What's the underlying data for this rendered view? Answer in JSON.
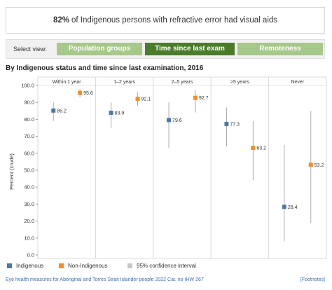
{
  "headline": {
    "value": "82%",
    "text": "of Indigenous persons with refractive error had visual aids"
  },
  "view_selector": {
    "label": "Select view:",
    "options": [
      {
        "label": "Population groups",
        "selected": false
      },
      {
        "label": "Time since last exam",
        "selected": true
      },
      {
        "label": "Remoteness",
        "selected": false
      }
    ]
  },
  "colors": {
    "indigenous": "#4e79a7",
    "non_indigenous": "#f28e2b",
    "ci": "#aaaaaa",
    "selected_button": "#4a7c2a",
    "unselected_button": "#a6c88a"
  },
  "chart_data": {
    "type": "scatter",
    "title": "By Indigenous status and time since last examination, 2016",
    "ylabel": "Percent (crude)",
    "ylim": [
      0,
      100
    ],
    "yticks": [
      "0.0",
      "10.0",
      "20.0",
      "30.0",
      "40.0",
      "50.0",
      "60.0",
      "70.0",
      "80.0",
      "90.0",
      "100.0"
    ],
    "categories": [
      "Within 1 year",
      "1–2 years",
      "2–5 years",
      ">5 years",
      "Never"
    ],
    "series": [
      {
        "name": "Indigenous",
        "color": "#4e79a7",
        "values": [
          85.2,
          83.9,
          79.6,
          77.3,
          28.4
        ],
        "labels": [
          "85.2",
          "83.9",
          "79.6",
          "77.3",
          "28.4"
        ],
        "ci_low": [
          79,
          75,
          63,
          64,
          8
        ],
        "ci_high": [
          90,
          90,
          90,
          87,
          65
        ]
      },
      {
        "name": "Non-Indigenous",
        "color": "#f28e2b",
        "values": [
          95.6,
          92.1,
          92.7,
          63.2,
          53.2
        ],
        "labels": [
          "95.6",
          "92.1",
          "92.7",
          "63.2",
          "53.2"
        ],
        "ci_low": [
          93,
          88,
          84,
          44,
          19
        ],
        "ci_high": [
          98,
          96,
          97,
          79,
          85
        ]
      }
    ],
    "grid": false
  },
  "legend": {
    "indigenous": "Indigenous",
    "non_indigenous": "Non-Indigenous",
    "ci": "95% confidence interval"
  },
  "footer": {
    "source": "Eye health measures for Aboriginal and Torres Strait Islander people 2022 Cat. no IHW 267",
    "footnotes": "[Footnotes]"
  }
}
